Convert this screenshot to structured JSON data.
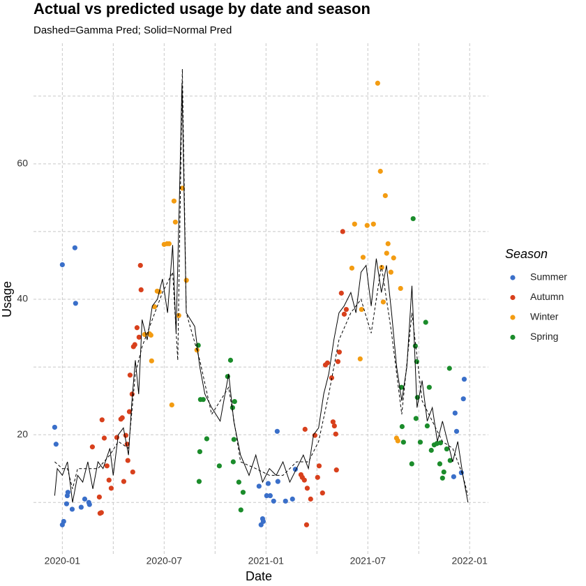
{
  "chart_data": {
    "type": "scatter",
    "title": "Actual vs predicted usage by date and season",
    "subtitle": "Dashed=Gamma Pred; Solid=Normal Pred",
    "x_label": "Date",
    "y_label": "Usage",
    "legend_title": "Season",
    "xlim": [
      -1.7,
      25.1
    ],
    "ylim": [
      2.3,
      77.8
    ],
    "xticks": [
      {
        "value": 0,
        "label": "2020-01"
      },
      {
        "value": 6,
        "label": "2020-07"
      },
      {
        "value": 12,
        "label": "2021-01"
      },
      {
        "value": 18,
        "label": "2021-07"
      },
      {
        "value": 24,
        "label": "2022-01"
      }
    ],
    "minor_xticks": [
      3,
      9,
      15,
      21
    ],
    "yticks": [
      20,
      40,
      60
    ],
    "minor_yticks": [
      10,
      30,
      50,
      70
    ],
    "grid": true,
    "legend": "right",
    "series": [
      {
        "name": "Summer",
        "color": "#3a6fc9",
        "x": [
          -0.45,
          -0.37,
          0,
          0,
          0.08,
          0.25,
          0.29,
          0.33,
          0.58,
          0.74,
          0.78,
          1.11,
          1.32,
          1.56,
          1.6,
          11.59,
          11.71,
          11.8,
          11.84,
          12.04,
          12.13,
          12.25,
          12.45,
          12.66,
          12.7,
          13.15,
          13.56,
          13.73,
          23.06,
          23.14,
          23.23,
          23.51,
          23.63,
          23.68
        ],
        "values": [
          21.1,
          18.6,
          45.1,
          6.7,
          7.2,
          9.8,
          11.0,
          11.5,
          9.0,
          47.6,
          39.4,
          9.3,
          10.5,
          10.0,
          9.7,
          12.4,
          6.7,
          7.6,
          7.2,
          11.0,
          12.8,
          11.0,
          10.2,
          20.5,
          13.1,
          10.2,
          10.5,
          14.9,
          13.8,
          23.2,
          20.5,
          14.4,
          25.3,
          28.2
        ]
      },
      {
        "name": "Autumn",
        "color": "#d8401c",
        "x": [
          1.77,
          2.18,
          2.22,
          2.3,
          2.34,
          2.47,
          2.63,
          2.75,
          2.88,
          3.21,
          3.45,
          3.53,
          3.62,
          3.74,
          3.82,
          3.86,
          3.95,
          3.99,
          4.11,
          4.15,
          4.19,
          4.27,
          4.4,
          4.52,
          4.6,
          4.64,
          14.06,
          14.14,
          14.26,
          14.3,
          14.39,
          14.43,
          14.63,
          14.88,
          15.04,
          15.13,
          15.33,
          15.5,
          15.62,
          15.87,
          15.95,
          16.03,
          16.11,
          16.15,
          16.24,
          16.32,
          16.44,
          16.52,
          16.61,
          16.73
        ],
        "values": [
          18.2,
          10.8,
          8.4,
          8.5,
          22.2,
          19.5,
          15.4,
          13.3,
          12.1,
          19.6,
          22.3,
          22.5,
          13.1,
          19.9,
          18.6,
          16.2,
          23.4,
          28.8,
          26.0,
          14.5,
          33.0,
          33.3,
          35.8,
          34.4,
          45.0,
          41.4,
          14.1,
          13.7,
          13.3,
          20.8,
          6.7,
          12.1,
          10.5,
          19.9,
          13.7,
          15.4,
          11.4,
          30.3,
          30.6,
          28.4,
          21.9,
          21.3,
          20.1,
          14.8,
          30.8,
          32.2,
          40.9,
          50.0,
          37.8,
          38.5
        ]
      },
      {
        "name": "Winter",
        "color": "#f39c12",
        "x": [
          4.85,
          5.14,
          5.22,
          5.26,
          5.43,
          5.59,
          5.71,
          6.0,
          6.17,
          6.29,
          6.45,
          6.58,
          6.66,
          6.86,
          7.07,
          7.31,
          7.93,
          17.06,
          17.22,
          17.55,
          17.63,
          17.72,
          17.96,
          18.33,
          18.58,
          18.74,
          18.82,
          18.91,
          19.03,
          19.11,
          19.19,
          19.36,
          19.52,
          19.69,
          19.77,
          19.93
        ],
        "values": [
          34.8,
          34.9,
          34.7,
          30.9,
          38.9,
          41.2,
          41.1,
          48.1,
          48.2,
          48.2,
          24.4,
          54.5,
          51.4,
          37.6,
          56.4,
          42.8,
          32.5,
          44.6,
          51.1,
          31.2,
          38.5,
          46.2,
          50.9,
          51.1,
          71.9,
          58.9,
          44.7,
          39.6,
          55.3,
          46.8,
          48.2,
          44.0,
          46.1,
          19.5,
          19.1,
          41.6
        ]
      },
      {
        "name": "Spring",
        "color": "#1b8c2b",
        "x": [
          8.01,
          8.06,
          8.1,
          8.14,
          8.3,
          8.51,
          9.25,
          9.74,
          9.91,
          10.03,
          10.07,
          10.11,
          10.15,
          10.4,
          10.52,
          10.65,
          19.98,
          20.02,
          20.1,
          20.59,
          20.67,
          20.8,
          20.84,
          20.88,
          20.92,
          21.09,
          21.41,
          21.5,
          21.62,
          21.74,
          21.91,
          22.07,
          22.24,
          22.28,
          22.4,
          22.48,
          22.65,
          22.81,
          22.85
        ],
        "values": [
          33.2,
          13.1,
          17.5,
          25.2,
          25.2,
          19.4,
          15.4,
          28.6,
          31.0,
          24.0,
          16.0,
          19.3,
          24.9,
          13.0,
          8.9,
          11.5,
          27.0,
          21.2,
          18.9,
          15.7,
          51.9,
          33.1,
          22.4,
          30.8,
          25.5,
          18.9,
          36.6,
          21.3,
          27.0,
          17.7,
          18.5,
          18.7,
          15.7,
          18.8,
          13.6,
          14.5,
          17.9,
          29.8,
          16.2
        ]
      }
    ],
    "lines": [
      {
        "style": "dashed",
        "color": "#000000",
        "x": [
          -0.45,
          0,
          0.3,
          0.6,
          0.9,
          1.5,
          2.1,
          2.8,
          3.3,
          3.9,
          4.3,
          4.7,
          5.3,
          5.9,
          6.5,
          6.8,
          7.07,
          7.3,
          8.1,
          8.8,
          9.8,
          10.5,
          11.4,
          12.2,
          13.0,
          13.8,
          14.5,
          15.1,
          15.7,
          16.3,
          17.0,
          17.6,
          18.2,
          18.8,
          19.4,
          20.0,
          20.6,
          21.2,
          21.8,
          22.4,
          23.0,
          23.6,
          23.9
        ],
        "values": [
          16,
          15,
          15,
          12,
          15,
          15,
          15,
          17,
          19,
          18,
          29,
          33,
          37,
          41,
          44,
          31,
          74,
          38,
          31,
          23,
          27,
          16,
          15,
          14,
          14,
          16,
          16,
          19,
          26,
          34,
          38,
          40,
          35,
          45,
          35,
          23,
          38,
          25,
          22,
          19,
          18,
          14,
          11
        ]
      },
      {
        "style": "solid",
        "color": "#000000",
        "x": [
          -0.45,
          -0.3,
          0,
          0.3,
          0.6,
          0.9,
          1.2,
          1.5,
          1.8,
          2.1,
          2.4,
          2.8,
          3.0,
          3.3,
          3.6,
          3.9,
          4.1,
          4.3,
          4.5,
          4.7,
          5.0,
          5.3,
          5.6,
          5.9,
          6.2,
          6.5,
          6.7,
          6.9,
          7.05,
          7.3,
          7.8,
          8.1,
          8.4,
          8.8,
          9.3,
          9.8,
          10.1,
          10.5,
          11.0,
          11.4,
          11.8,
          12.2,
          12.6,
          13.0,
          13.4,
          13.8,
          14.2,
          14.5,
          14.8,
          15.1,
          15.4,
          15.7,
          16.0,
          16.3,
          16.6,
          17.0,
          17.3,
          17.6,
          17.9,
          18.2,
          18.5,
          18.8,
          19.1,
          19.4,
          19.7,
          20.0,
          20.3,
          20.6,
          20.9,
          21.2,
          21.5,
          21.8,
          22.1,
          22.4,
          22.7,
          23.0,
          23.3,
          23.6,
          23.9
        ],
        "values": [
          11,
          15,
          14,
          16,
          10,
          14,
          13,
          16,
          12,
          16,
          15,
          18,
          14,
          20,
          21,
          17,
          25,
          31,
          26,
          37,
          34,
          39,
          40,
          43,
          38,
          48,
          35,
          55,
          72,
          38,
          36,
          30,
          26,
          24,
          22,
          29,
          22,
          17,
          14,
          17,
          13,
          15,
          14,
          16,
          13,
          15,
          17,
          15,
          20,
          21,
          26,
          29,
          34,
          38,
          39,
          41,
          38,
          44,
          45,
          39,
          46,
          41,
          45,
          38,
          30,
          25,
          30,
          42,
          24,
          28,
          22,
          24,
          19,
          22,
          19,
          16,
          19,
          14,
          10
        ]
      }
    ]
  }
}
